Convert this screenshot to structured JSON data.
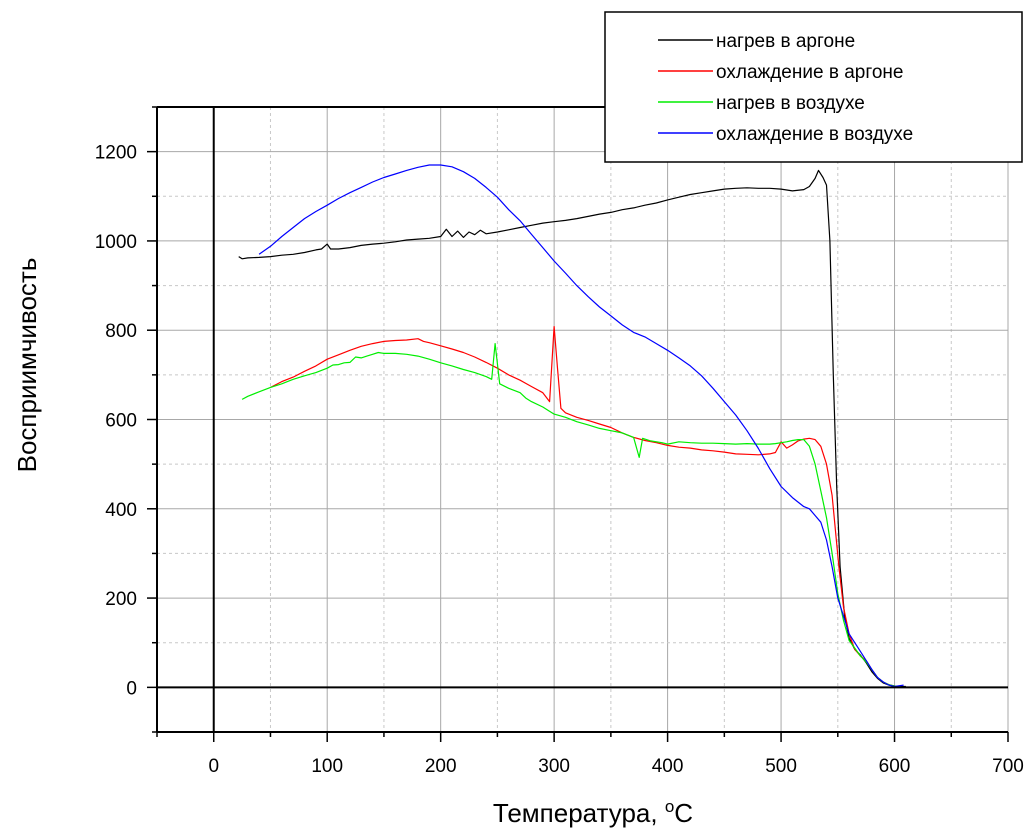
{
  "chart_data": {
    "type": "line",
    "title": "",
    "xlabel": "Температура, ",
    "xlabel_superscript": "o",
    "xlabel_unit": "C",
    "ylabel": "Восприимчивость",
    "xlim": [
      -50,
      700
    ],
    "ylim": [
      -100,
      1300
    ],
    "x_ticks": [
      0,
      100,
      200,
      300,
      400,
      500,
      600,
      700
    ],
    "y_ticks": [
      0,
      200,
      400,
      600,
      800,
      1000,
      1200
    ],
    "grid": true,
    "legend_position": "top-right",
    "series": [
      {
        "name": "нагрев в аргоне",
        "color": "#000000",
        "points": [
          [
            22,
            965
          ],
          [
            25,
            960
          ],
          [
            30,
            962
          ],
          [
            40,
            963
          ],
          [
            50,
            965
          ],
          [
            60,
            968
          ],
          [
            70,
            970
          ],
          [
            80,
            974
          ],
          [
            90,
            980
          ],
          [
            95,
            982
          ],
          [
            100,
            993
          ],
          [
            103,
            982
          ],
          [
            110,
            982
          ],
          [
            120,
            985
          ],
          [
            130,
            990
          ],
          [
            140,
            993
          ],
          [
            150,
            995
          ],
          [
            160,
            998
          ],
          [
            170,
            1002
          ],
          [
            180,
            1004
          ],
          [
            190,
            1006
          ],
          [
            200,
            1010
          ],
          [
            205,
            1026
          ],
          [
            210,
            1010
          ],
          [
            215,
            1022
          ],
          [
            220,
            1008
          ],
          [
            225,
            1020
          ],
          [
            230,
            1014
          ],
          [
            235,
            1024
          ],
          [
            240,
            1016
          ],
          [
            250,
            1020
          ],
          [
            260,
            1025
          ],
          [
            270,
            1030
          ],
          [
            280,
            1035
          ],
          [
            290,
            1040
          ],
          [
            300,
            1043
          ],
          [
            310,
            1046
          ],
          [
            320,
            1050
          ],
          [
            330,
            1055
          ],
          [
            340,
            1060
          ],
          [
            350,
            1064
          ],
          [
            360,
            1070
          ],
          [
            370,
            1074
          ],
          [
            380,
            1080
          ],
          [
            390,
            1085
          ],
          [
            400,
            1092
          ],
          [
            410,
            1098
          ],
          [
            420,
            1104
          ],
          [
            430,
            1108
          ],
          [
            440,
            1112
          ],
          [
            450,
            1116
          ],
          [
            460,
            1118
          ],
          [
            470,
            1119
          ],
          [
            480,
            1118
          ],
          [
            490,
            1118
          ],
          [
            500,
            1116
          ],
          [
            510,
            1112
          ],
          [
            520,
            1115
          ],
          [
            525,
            1122
          ],
          [
            530,
            1140
          ],
          [
            533,
            1158
          ],
          [
            537,
            1142
          ],
          [
            540,
            1125
          ],
          [
            543,
            1000
          ],
          [
            546,
            700
          ],
          [
            549,
            450
          ],
          [
            552,
            270
          ],
          [
            556,
            160
          ],
          [
            560,
            110
          ],
          [
            565,
            85
          ],
          [
            570,
            72
          ],
          [
            575,
            55
          ],
          [
            580,
            35
          ],
          [
            585,
            20
          ],
          [
            590,
            10
          ],
          [
            595,
            5
          ],
          [
            600,
            3
          ],
          [
            605,
            2
          ],
          [
            610,
            2
          ]
        ]
      },
      {
        "name": "охлаждение в аргоне",
        "color": "#ff0000",
        "points": [
          [
            50,
            672
          ],
          [
            60,
            685
          ],
          [
            70,
            695
          ],
          [
            80,
            708
          ],
          [
            90,
            720
          ],
          [
            100,
            735
          ],
          [
            110,
            745
          ],
          [
            120,
            755
          ],
          [
            130,
            764
          ],
          [
            140,
            770
          ],
          [
            150,
            775
          ],
          [
            160,
            777
          ],
          [
            170,
            778
          ],
          [
            180,
            781
          ],
          [
            185,
            775
          ],
          [
            190,
            772
          ],
          [
            200,
            765
          ],
          [
            210,
            758
          ],
          [
            220,
            750
          ],
          [
            230,
            740
          ],
          [
            240,
            728
          ],
          [
            250,
            715
          ],
          [
            260,
            700
          ],
          [
            270,
            688
          ],
          [
            280,
            674
          ],
          [
            290,
            660
          ],
          [
            296,
            640
          ],
          [
            300,
            808
          ],
          [
            303,
            715
          ],
          [
            306,
            625
          ],
          [
            310,
            615
          ],
          [
            320,
            605
          ],
          [
            330,
            598
          ],
          [
            340,
            590
          ],
          [
            350,
            582
          ],
          [
            360,
            570
          ],
          [
            370,
            560
          ],
          [
            380,
            553
          ],
          [
            390,
            548
          ],
          [
            400,
            542
          ],
          [
            410,
            538
          ],
          [
            420,
            536
          ],
          [
            430,
            532
          ],
          [
            440,
            530
          ],
          [
            450,
            527
          ],
          [
            460,
            523
          ],
          [
            470,
            522
          ],
          [
            480,
            521
          ],
          [
            490,
            523
          ],
          [
            495,
            526
          ],
          [
            500,
            550
          ],
          [
            505,
            536
          ],
          [
            510,
            543
          ],
          [
            515,
            552
          ],
          [
            520,
            556
          ],
          [
            525,
            558
          ],
          [
            530,
            555
          ],
          [
            535,
            540
          ],
          [
            540,
            500
          ],
          [
            545,
            430
          ],
          [
            548,
            350
          ],
          [
            551,
            270
          ],
          [
            555,
            180
          ],
          [
            560,
            120
          ],
          [
            565,
            85
          ],
          [
            570,
            70
          ],
          [
            575,
            60
          ],
          [
            580,
            40
          ],
          [
            585,
            22
          ],
          [
            590,
            12
          ],
          [
            595,
            6
          ],
          [
            600,
            3
          ],
          [
            605,
            2
          ]
        ]
      },
      {
        "name": "нагрев в воздухе",
        "color": "#00ee00",
        "points": [
          [
            25,
            645
          ],
          [
            30,
            652
          ],
          [
            40,
            662
          ],
          [
            50,
            672
          ],
          [
            60,
            680
          ],
          [
            70,
            690
          ],
          [
            80,
            698
          ],
          [
            90,
            705
          ],
          [
            100,
            715
          ],
          [
            105,
            722
          ],
          [
            110,
            723
          ],
          [
            115,
            727
          ],
          [
            120,
            728
          ],
          [
            125,
            740
          ],
          [
            130,
            738
          ],
          [
            135,
            742
          ],
          [
            140,
            746
          ],
          [
            145,
            750
          ],
          [
            150,
            748
          ],
          [
            160,
            748
          ],
          [
            170,
            746
          ],
          [
            180,
            742
          ],
          [
            190,
            735
          ],
          [
            200,
            727
          ],
          [
            210,
            720
          ],
          [
            220,
            712
          ],
          [
            230,
            705
          ],
          [
            240,
            696
          ],
          [
            245,
            690
          ],
          [
            248,
            770
          ],
          [
            252,
            680
          ],
          [
            260,
            670
          ],
          [
            270,
            660
          ],
          [
            275,
            648
          ],
          [
            280,
            640
          ],
          [
            290,
            628
          ],
          [
            295,
            620
          ],
          [
            300,
            612
          ],
          [
            310,
            605
          ],
          [
            320,
            595
          ],
          [
            330,
            588
          ],
          [
            340,
            580
          ],
          [
            350,
            575
          ],
          [
            360,
            570
          ],
          [
            370,
            560
          ],
          [
            375,
            515
          ],
          [
            378,
            558
          ],
          [
            385,
            552
          ],
          [
            395,
            548
          ],
          [
            400,
            545
          ],
          [
            410,
            550
          ],
          [
            420,
            548
          ],
          [
            430,
            547
          ],
          [
            440,
            547
          ],
          [
            450,
            546
          ],
          [
            460,
            545
          ],
          [
            470,
            546
          ],
          [
            480,
            545
          ],
          [
            490,
            545
          ],
          [
            495,
            546
          ],
          [
            500,
            548
          ],
          [
            505,
            550
          ],
          [
            510,
            553
          ],
          [
            515,
            555
          ],
          [
            520,
            555
          ],
          [
            525,
            540
          ],
          [
            530,
            500
          ],
          [
            535,
            440
          ],
          [
            540,
            380
          ],
          [
            545,
            300
          ],
          [
            550,
            210
          ],
          [
            555,
            150
          ],
          [
            560,
            105
          ],
          [
            565,
            88
          ],
          [
            570,
            70
          ],
          [
            575,
            57
          ],
          [
            580,
            40
          ],
          [
            585,
            22
          ],
          [
            590,
            12
          ],
          [
            595,
            6
          ],
          [
            600,
            3
          ],
          [
            605,
            2
          ]
        ]
      },
      {
        "name": "охлаждение в воздухе",
        "color": "#0000ff",
        "points": [
          [
            40,
            970
          ],
          [
            50,
            988
          ],
          [
            60,
            1010
          ],
          [
            70,
            1030
          ],
          [
            80,
            1050
          ],
          [
            90,
            1066
          ],
          [
            100,
            1080
          ],
          [
            110,
            1095
          ],
          [
            120,
            1108
          ],
          [
            130,
            1120
          ],
          [
            140,
            1132
          ],
          [
            150,
            1142
          ],
          [
            160,
            1150
          ],
          [
            170,
            1158
          ],
          [
            180,
            1165
          ],
          [
            190,
            1170
          ],
          [
            200,
            1170
          ],
          [
            210,
            1166
          ],
          [
            220,
            1155
          ],
          [
            230,
            1140
          ],
          [
            240,
            1120
          ],
          [
            250,
            1098
          ],
          [
            260,
            1070
          ],
          [
            270,
            1045
          ],
          [
            280,
            1015
          ],
          [
            290,
            985
          ],
          [
            300,
            955
          ],
          [
            310,
            928
          ],
          [
            320,
            900
          ],
          [
            330,
            875
          ],
          [
            340,
            852
          ],
          [
            350,
            832
          ],
          [
            360,
            812
          ],
          [
            370,
            795
          ],
          [
            380,
            785
          ],
          [
            390,
            770
          ],
          [
            400,
            755
          ],
          [
            410,
            738
          ],
          [
            420,
            720
          ],
          [
            430,
            698
          ],
          [
            440,
            670
          ],
          [
            450,
            640
          ],
          [
            460,
            610
          ],
          [
            470,
            575
          ],
          [
            480,
            535
          ],
          [
            490,
            490
          ],
          [
            500,
            450
          ],
          [
            510,
            425
          ],
          [
            520,
            405
          ],
          [
            525,
            400
          ],
          [
            530,
            385
          ],
          [
            535,
            370
          ],
          [
            540,
            330
          ],
          [
            545,
            270
          ],
          [
            550,
            200
          ],
          [
            555,
            160
          ],
          [
            560,
            120
          ],
          [
            565,
            100
          ],
          [
            570,
            80
          ],
          [
            575,
            60
          ],
          [
            580,
            40
          ],
          [
            585,
            22
          ],
          [
            590,
            12
          ],
          [
            595,
            5
          ],
          [
            600,
            2
          ],
          [
            608,
            5
          ]
        ]
      }
    ]
  }
}
